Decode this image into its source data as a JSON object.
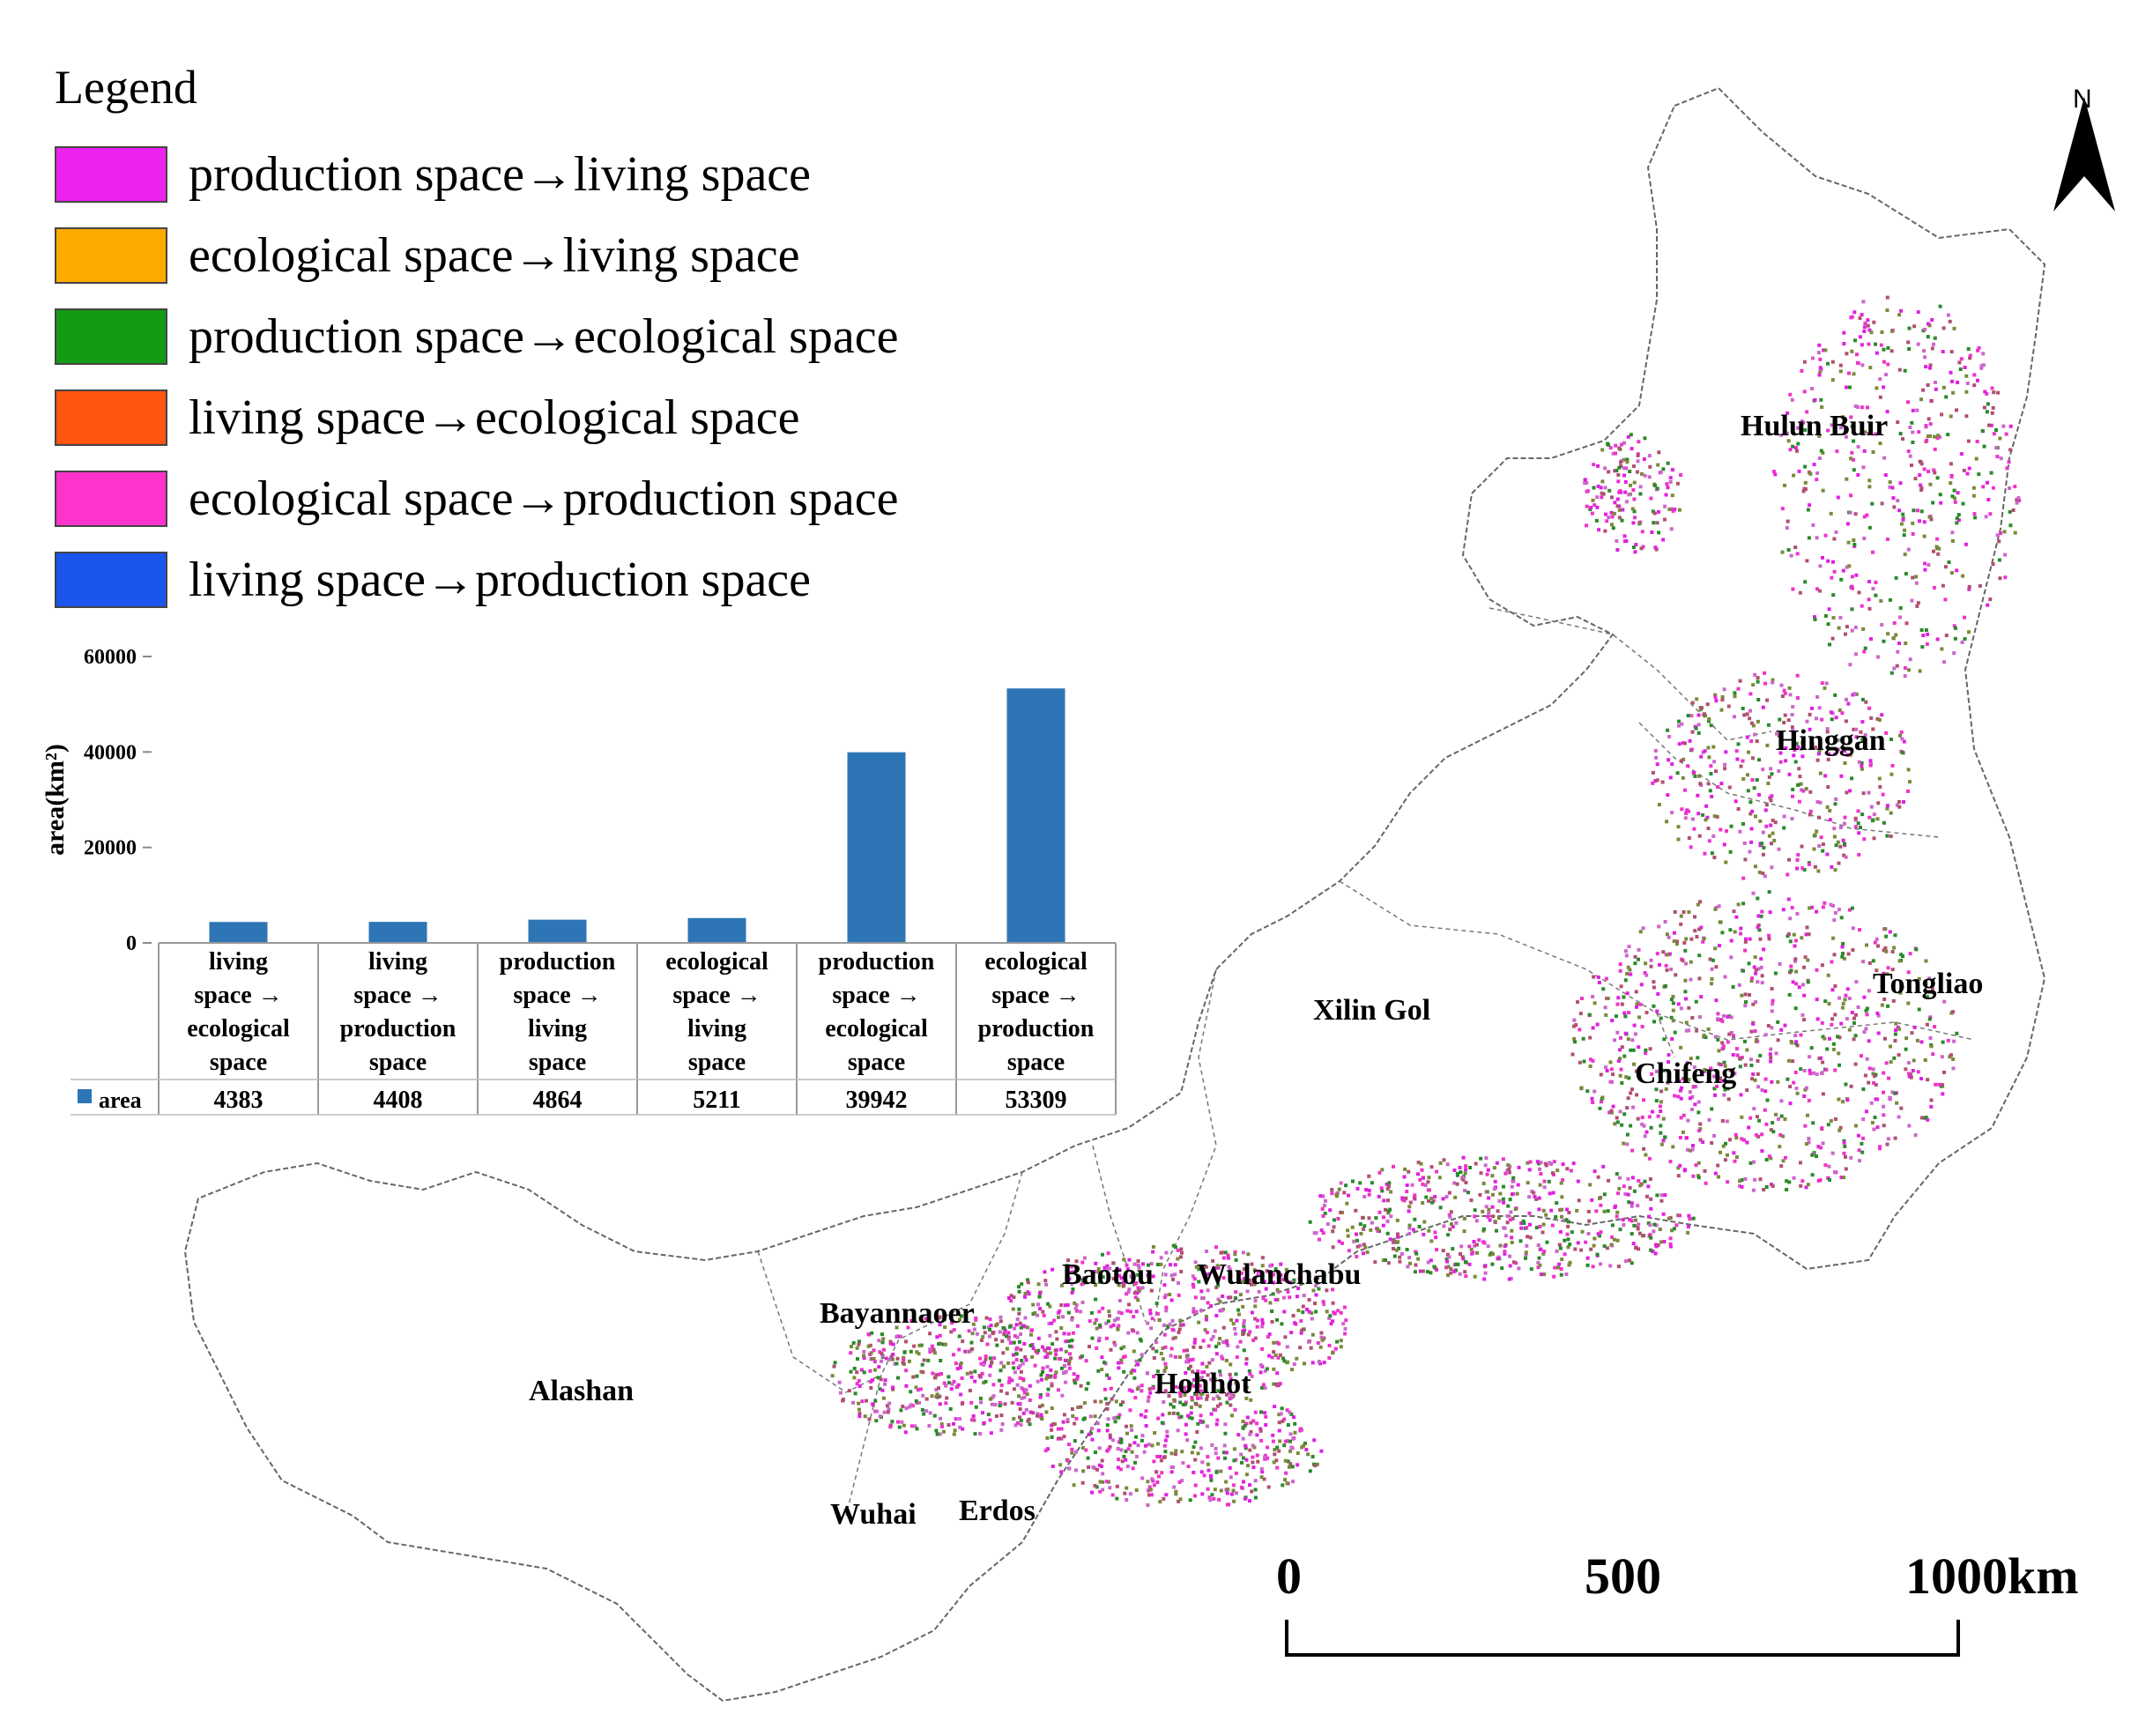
{
  "legend": {
    "title": "Legend",
    "items": [
      {
        "label": "production space→living space",
        "color": "#ee22ee"
      },
      {
        "label": "ecological space→living space",
        "color": "#ffaa00"
      },
      {
        "label": "production space→ecological space",
        "color": "#149b14"
      },
      {
        "label": "living space→ecological space",
        "color": "#ff5511"
      },
      {
        "label": "ecological space→production space",
        "color": "#ff33cc"
      },
      {
        "label": "living space→production space",
        "color": "#1a55ee"
      }
    ]
  },
  "map": {
    "cities": [
      "Hulun Buir",
      "Hinggan",
      "Tongliao",
      "Chifeng",
      "Xilin Gol",
      "Baotou",
      "Wulanchabu",
      "Bayannaoer",
      "Hohhot",
      "Alashan",
      "Wuhai",
      "Erdos"
    ],
    "north_label": "N",
    "scale": {
      "ticks": [
        "0",
        "500",
        "1000km"
      ]
    }
  },
  "chart_data": {
    "type": "bar",
    "categories": [
      [
        "living",
        "space →",
        "ecological",
        "space"
      ],
      [
        "living",
        "space →",
        "production",
        "space"
      ],
      [
        "production",
        "space →",
        "living",
        "space"
      ],
      [
        "ecological",
        "space →",
        "living",
        "space"
      ],
      [
        "production",
        "space →",
        "ecological",
        "space"
      ],
      [
        "ecological",
        "space →",
        "production",
        "space"
      ]
    ],
    "series": [
      {
        "name": "area",
        "values": [
          4383,
          4408,
          4864,
          5211,
          39942,
          53309
        ],
        "color": "#2e75b6"
      }
    ],
    "ylabel": "area(km²)",
    "ylim": [
      0,
      60000
    ],
    "yticks": [
      "60000",
      "40000",
      "20000",
      "0"
    ],
    "table_values": [
      "4383",
      "4408",
      "4864",
      "5211",
      "39942",
      "53309"
    ]
  }
}
